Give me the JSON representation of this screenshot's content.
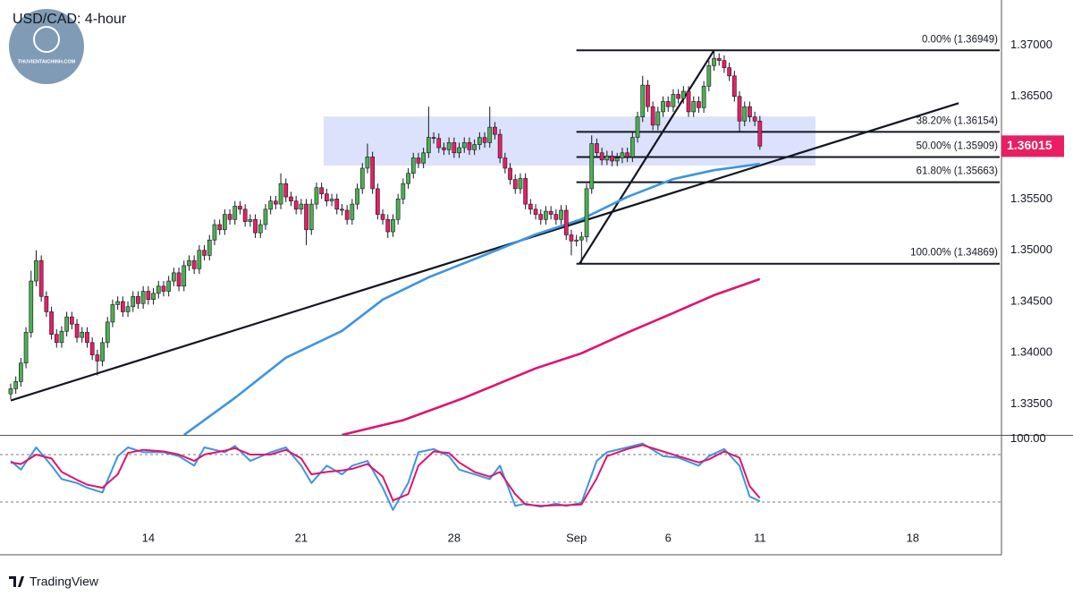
{
  "chart_data": {
    "type": "candlestick",
    "title": "USD/CAD: 4-hour",
    "watermark": "THUVIENTAICHINH.COM",
    "footer": "TradingView",
    "up_color": "#4caf50",
    "down_color": "#e91e63",
    "xlim": [
      -2.1,
      194.4
    ],
    "ylim": [
      1.332,
      1.3744
    ],
    "xticks": [
      {
        "value": 27,
        "label": "14"
      },
      {
        "value": 57,
        "label": "21"
      },
      {
        "value": 87,
        "label": "28"
      },
      {
        "value": 111,
        "label": "Sep"
      },
      {
        "value": 129,
        "label": "6"
      },
      {
        "value": 147,
        "label": "11"
      },
      {
        "value": 177,
        "label": "18"
      }
    ],
    "yticks": [
      {
        "value": 1.37,
        "label": "1.37000"
      },
      {
        "value": 1.365,
        "label": "1.36500"
      },
      {
        "value": 1.355,
        "label": "1.35500"
      },
      {
        "value": 1.35,
        "label": "1.35000"
      },
      {
        "value": 1.345,
        "label": "1.34500"
      },
      {
        "value": 1.34,
        "label": "1.34000"
      },
      {
        "value": 1.335,
        "label": "1.33500"
      }
    ],
    "last_price": 1.36015,
    "ohlc": [
      [
        1.336,
        1.337,
        1.3355,
        1.3365
      ],
      [
        1.3365,
        1.3377,
        1.336,
        1.3372
      ],
      [
        1.3372,
        1.3395,
        1.3367,
        1.339
      ],
      [
        1.339,
        1.3425,
        1.3385,
        1.342
      ],
      [
        1.342,
        1.348,
        1.3415,
        1.347
      ],
      [
        1.347,
        1.35,
        1.3465,
        1.349
      ],
      [
        1.349,
        1.3495,
        1.345,
        1.3455
      ],
      [
        1.3455,
        1.346,
        1.3435,
        1.344
      ],
      [
        1.344,
        1.3445,
        1.3413,
        1.3418
      ],
      [
        1.3418,
        1.3423,
        1.3405,
        1.341
      ],
      [
        1.341,
        1.3426,
        1.3405,
        1.3421
      ],
      [
        1.3421,
        1.344,
        1.3416,
        1.3435
      ],
      [
        1.3435,
        1.344,
        1.3423,
        1.3428
      ],
      [
        1.3428,
        1.3433,
        1.341,
        1.3415
      ],
      [
        1.3415,
        1.3425,
        1.341,
        1.342
      ],
      [
        1.342,
        1.3425,
        1.3405,
        1.341
      ],
      [
        1.341,
        1.3415,
        1.3393,
        1.3398
      ],
      [
        1.3398,
        1.3403,
        1.3378,
        1.3392
      ],
      [
        1.3392,
        1.3415,
        1.3387,
        1.341
      ],
      [
        1.341,
        1.3435,
        1.3405,
        1.343
      ],
      [
        1.343,
        1.3452,
        1.3425,
        1.3447
      ],
      [
        1.3447,
        1.3455,
        1.3442,
        1.345
      ],
      [
        1.345,
        1.3455,
        1.3435,
        1.344
      ],
      [
        1.344,
        1.345,
        1.3435,
        1.3445
      ],
      [
        1.3445,
        1.346,
        1.344,
        1.3455
      ],
      [
        1.3455,
        1.346,
        1.3443,
        1.3448
      ],
      [
        1.3448,
        1.3465,
        1.3443,
        1.346
      ],
      [
        1.346,
        1.3465,
        1.3447,
        1.3452
      ],
      [
        1.3452,
        1.3463,
        1.3447,
        1.3458
      ],
      [
        1.3458,
        1.347,
        1.3453,
        1.3465
      ],
      [
        1.3465,
        1.347,
        1.3455,
        1.346
      ],
      [
        1.346,
        1.3475,
        1.3455,
        1.347
      ],
      [
        1.347,
        1.3483,
        1.3465,
        1.3478
      ],
      [
        1.3478,
        1.3483,
        1.346,
        1.3465
      ],
      [
        1.3465,
        1.349,
        1.346,
        1.3485
      ],
      [
        1.3485,
        1.3495,
        1.348,
        1.349
      ],
      [
        1.349,
        1.3495,
        1.3477,
        1.3482
      ],
      [
        1.3482,
        1.3505,
        1.3477,
        1.35
      ],
      [
        1.35,
        1.3505,
        1.349,
        1.3495
      ],
      [
        1.3495,
        1.3515,
        1.349,
        1.351
      ],
      [
        1.351,
        1.353,
        1.3505,
        1.3525
      ],
      [
        1.3525,
        1.353,
        1.3515,
        1.352
      ],
      [
        1.352,
        1.354,
        1.3515,
        1.3535
      ],
      [
        1.3535,
        1.354,
        1.3525,
        1.353
      ],
      [
        1.353,
        1.3548,
        1.3525,
        1.3543
      ],
      [
        1.3543,
        1.3548,
        1.3535,
        1.354
      ],
      [
        1.354,
        1.3545,
        1.3523,
        1.3528
      ],
      [
        1.3528,
        1.3535,
        1.3523,
        1.353
      ],
      [
        1.353,
        1.3535,
        1.3512,
        1.3517
      ],
      [
        1.3517,
        1.353,
        1.3512,
        1.3525
      ],
      [
        1.3525,
        1.3545,
        1.352,
        1.354
      ],
      [
        1.354,
        1.3553,
        1.3535,
        1.3548
      ],
      [
        1.3548,
        1.3553,
        1.354,
        1.3545
      ],
      [
        1.3545,
        1.3575,
        1.354,
        1.3565
      ],
      [
        1.3565,
        1.357,
        1.3547,
        1.3552
      ],
      [
        1.3552,
        1.3557,
        1.3543,
        1.3548
      ],
      [
        1.3548,
        1.3553,
        1.3535,
        1.354
      ],
      [
        1.354,
        1.355,
        1.3535,
        1.3545
      ],
      [
        1.3545,
        1.355,
        1.3505,
        1.352
      ],
      [
        1.352,
        1.355,
        1.3515,
        1.3545
      ],
      [
        1.3545,
        1.3566,
        1.354,
        1.3561
      ],
      [
        1.3561,
        1.3566,
        1.355,
        1.3555
      ],
      [
        1.3555,
        1.356,
        1.3543,
        1.3548
      ],
      [
        1.3548,
        1.3555,
        1.3543,
        1.355
      ],
      [
        1.355,
        1.3555,
        1.3535,
        1.354
      ],
      [
        1.354,
        1.3545,
        1.3534,
        1.3539
      ],
      [
        1.3539,
        1.3544,
        1.3525,
        1.353
      ],
      [
        1.353,
        1.355,
        1.3525,
        1.3545
      ],
      [
        1.3545,
        1.3565,
        1.354,
        1.356
      ],
      [
        1.356,
        1.3585,
        1.3555,
        1.358
      ],
      [
        1.358,
        1.3604,
        1.3575,
        1.3591
      ],
      [
        1.3591,
        1.3596,
        1.3555,
        1.356
      ],
      [
        1.356,
        1.3565,
        1.353,
        1.3535
      ],
      [
        1.3535,
        1.354,
        1.3525,
        1.353
      ],
      [
        1.353,
        1.3535,
        1.3512,
        1.3518
      ],
      [
        1.3518,
        1.3535,
        1.3513,
        1.353
      ],
      [
        1.353,
        1.3555,
        1.3525,
        1.355
      ],
      [
        1.355,
        1.357,
        1.3545,
        1.3565
      ],
      [
        1.3565,
        1.358,
        1.356,
        1.3575
      ],
      [
        1.3575,
        1.3595,
        1.357,
        1.359
      ],
      [
        1.359,
        1.3595,
        1.358,
        1.3585
      ],
      [
        1.3585,
        1.36,
        1.358,
        1.3595
      ],
      [
        1.3595,
        1.364,
        1.359,
        1.361
      ],
      [
        1.361,
        1.3615,
        1.3604,
        1.3609
      ],
      [
        1.3609,
        1.3614,
        1.3595,
        1.36
      ],
      [
        1.36,
        1.3605,
        1.3593,
        1.3598
      ],
      [
        1.3598,
        1.361,
        1.3593,
        1.3605
      ],
      [
        1.3605,
        1.361,
        1.359,
        1.3595
      ],
      [
        1.3595,
        1.3605,
        1.359,
        1.36
      ],
      [
        1.36,
        1.361,
        1.3595,
        1.3605
      ],
      [
        1.3605,
        1.361,
        1.3593,
        1.3598
      ],
      [
        1.3598,
        1.3608,
        1.3593,
        1.3603
      ],
      [
        1.3603,
        1.3615,
        1.3598,
        1.361
      ],
      [
        1.361,
        1.3615,
        1.36,
        1.3605
      ],
      [
        1.3605,
        1.364,
        1.36,
        1.362
      ],
      [
        1.362,
        1.3625,
        1.3608,
        1.3613
      ],
      [
        1.3613,
        1.3618,
        1.3585,
        1.359
      ],
      [
        1.359,
        1.3595,
        1.3575,
        1.358
      ],
      [
        1.358,
        1.3585,
        1.3564,
        1.3569
      ],
      [
        1.3569,
        1.3574,
        1.3555,
        1.356
      ],
      [
        1.356,
        1.3575,
        1.3555,
        1.357
      ],
      [
        1.357,
        1.3575,
        1.354,
        1.3545
      ],
      [
        1.3545,
        1.355,
        1.3535,
        1.354
      ],
      [
        1.354,
        1.3545,
        1.353,
        1.3535
      ],
      [
        1.3535,
        1.354,
        1.3525,
        1.353
      ],
      [
        1.353,
        1.3543,
        1.3525,
        1.3538
      ],
      [
        1.3538,
        1.3543,
        1.353,
        1.3535
      ],
      [
        1.3535,
        1.354,
        1.3525,
        1.353
      ],
      [
        1.353,
        1.3544,
        1.3525,
        1.3539
      ],
      [
        1.3539,
        1.3544,
        1.351,
        1.3515
      ],
      [
        1.3515,
        1.352,
        1.3495,
        1.3509
      ],
      [
        1.3509,
        1.3515,
        1.3504,
        1.351
      ],
      [
        1.351,
        1.3518,
        1.3487,
        1.3513
      ],
      [
        1.3513,
        1.3565,
        1.3508,
        1.356
      ],
      [
        1.356,
        1.3612,
        1.3555,
        1.3604
      ],
      [
        1.3604,
        1.3609,
        1.359,
        1.3595
      ],
      [
        1.3595,
        1.36,
        1.3583,
        1.3588
      ],
      [
        1.3588,
        1.3597,
        1.3583,
        1.3592
      ],
      [
        1.3592,
        1.3597,
        1.3582,
        1.3587
      ],
      [
        1.3587,
        1.3595,
        1.3582,
        1.359
      ],
      [
        1.359,
        1.36,
        1.3585,
        1.3595
      ],
      [
        1.3595,
        1.36,
        1.3586,
        1.3591
      ],
      [
        1.3591,
        1.3615,
        1.3586,
        1.361
      ],
      [
        1.361,
        1.3635,
        1.3605,
        1.363
      ],
      [
        1.363,
        1.367,
        1.3625,
        1.3661
      ],
      [
        1.3661,
        1.3666,
        1.3635,
        1.364
      ],
      [
        1.364,
        1.3645,
        1.3617,
        1.3622
      ],
      [
        1.3622,
        1.364,
        1.3617,
        1.3635
      ],
      [
        1.3635,
        1.365,
        1.363,
        1.3645
      ],
      [
        1.3645,
        1.365,
        1.3635,
        1.364
      ],
      [
        1.364,
        1.3657,
        1.3635,
        1.3652
      ],
      [
        1.3652,
        1.3657,
        1.3643,
        1.3648
      ],
      [
        1.3648,
        1.366,
        1.3643,
        1.3655
      ],
      [
        1.3655,
        1.366,
        1.363,
        1.3635
      ],
      [
        1.3635,
        1.365,
        1.363,
        1.3645
      ],
      [
        1.3645,
        1.365,
        1.3634,
        1.3639
      ],
      [
        1.3639,
        1.3665,
        1.3634,
        1.366
      ],
      [
        1.366,
        1.3685,
        1.3655,
        1.368
      ],
      [
        1.368,
        1.36949,
        1.3675,
        1.3687
      ],
      [
        1.3687,
        1.3692,
        1.368,
        1.3685
      ],
      [
        1.3685,
        1.369,
        1.3673,
        1.3678
      ],
      [
        1.3678,
        1.3683,
        1.3665,
        1.367
      ],
      [
        1.367,
        1.3675,
        1.3645,
        1.365
      ],
      [
        1.365,
        1.3655,
        1.3615,
        1.3626
      ],
      [
        1.3626,
        1.3645,
        1.3621,
        1.364
      ],
      [
        1.364,
        1.3645,
        1.3625,
        1.363
      ],
      [
        1.363,
        1.3635,
        1.3621,
        1.3626
      ],
      [
        1.3626,
        1.3631,
        1.3598,
        1.36015
      ]
    ],
    "moving_averages": [
      {
        "color": "#3d95e0",
        "x": [
          34,
          44,
          54,
          65,
          73,
          82,
          93,
          103,
          112,
          121,
          130,
          138,
          147
        ],
        "values": [
          1.332,
          1.33561,
          1.33953,
          1.34214,
          1.34519,
          1.34736,
          1.34954,
          1.35154,
          1.35302,
          1.3552,
          1.35694,
          1.35781,
          1.35842
        ]
      },
      {
        "color": "#e0136e",
        "x": [
          65,
          77,
          89,
          103,
          112,
          121,
          130,
          138,
          147
        ],
        "values": [
          1.332,
          1.33343,
          1.33561,
          1.33848,
          1.33996,
          1.34197,
          1.34388,
          1.34562,
          1.34719
        ]
      }
    ],
    "trendlines": [
      {
        "x": [
          0,
          186
        ],
        "values": [
          1.33535,
          1.36434
        ]
      },
      {
        "x": [
          111.6,
          138
        ],
        "values": [
          1.34869,
          1.36949
        ]
      }
    ],
    "zone": {
      "x": [
        61.4,
        157.9
      ],
      "values": [
        1.35825,
        1.36304
      ],
      "color": "#d6dcfb"
    },
    "fib_retracement": {
      "from_index": 111,
      "levels": [
        {
          "label": "0.00% (1.36949)",
          "value": 1.36949
        },
        {
          "label": "38.20% (1.36154)",
          "value": 1.36154
        },
        {
          "label": "50.00% (1.35909)",
          "value": 1.35909
        },
        {
          "label": "61.80% (1.35663)",
          "value": 1.35663
        },
        {
          "label": "100.00% (1.34869)",
          "value": 1.34869
        }
      ]
    },
    "stochastic": {
      "ylim": [
        -12.8,
        104.9
      ],
      "yticks": [
        {
          "value": 100,
          "label": "100.00"
        }
      ],
      "bands": [
        80,
        20
      ],
      "x": [
        0,
        2,
        5,
        8,
        10,
        13,
        15,
        18,
        21,
        23,
        26,
        30,
        33,
        36,
        38,
        42,
        44,
        47,
        51,
        54,
        57,
        59,
        62,
        65,
        67,
        70,
        73,
        75,
        78,
        80,
        83,
        86,
        88,
        91,
        94,
        96,
        99,
        101,
        104,
        107,
        109,
        112,
        115,
        117,
        121,
        124,
        128,
        131,
        135,
        137,
        140,
        143,
        145,
        147
      ],
      "series": [
        {
          "color": "#3d95e0",
          "values": [
            72,
            61,
            89,
            66,
            49,
            44,
            38,
            32,
            78,
            89,
            83,
            83,
            78,
            66,
            89,
            83,
            91,
            72,
            83,
            89,
            66,
            44,
            66,
            55,
            66,
            72,
            38,
            10,
            44,
            83,
            87,
            78,
            61,
            55,
            49,
            66,
            15,
            18,
            14,
            18,
            15,
            19,
            72,
            83,
            89,
            94,
            78,
            76,
            66,
            78,
            87,
            66,
            27,
            21
          ]
        },
        {
          "color": "#e0136e",
          "values": [
            70,
            68,
            80,
            75,
            58,
            48,
            42,
            38,
            55,
            82,
            86,
            84,
            80,
            72,
            80,
            85,
            88,
            80,
            80,
            86,
            75,
            55,
            58,
            60,
            62,
            68,
            52,
            22,
            30,
            66,
            84,
            82,
            70,
            58,
            52,
            58,
            30,
            17,
            15,
            16,
            16,
            17,
            50,
            78,
            87,
            92,
            84,
            78,
            70,
            74,
            84,
            76,
            40,
            25
          ]
        }
      ]
    }
  }
}
